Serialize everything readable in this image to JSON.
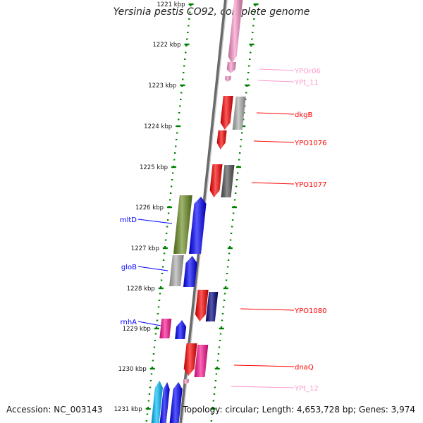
{
  "header": {
    "title": "Yersinia pestis CO92, complete genome"
  },
  "footer": {
    "accession": "Accession: NC_003143",
    "topology": "Topology: circular; Length: 4,653,728 bp; Genes: 3,974"
  },
  "colors": {
    "red": "#ff0000",
    "pink": "#ff99cc",
    "magenta": "#ff1493",
    "blue": "#0000ff",
    "olive": "#6b8e23",
    "cyan": "#00bfff",
    "grey": "#b0b0b0",
    "darkgrey": "#555555",
    "tick": "#008000",
    "backbone": "#808080"
  },
  "ticks": [
    {
      "label": "1221 kbp"
    },
    {
      "label": "1222 kbp"
    },
    {
      "label": "1223 kbp"
    },
    {
      "label": "1224 kbp"
    },
    {
      "label": "1225 kbp"
    },
    {
      "label": "1226 kbp"
    },
    {
      "label": "1227 kbp"
    },
    {
      "label": "1228 kbp"
    },
    {
      "label": "1229 kbp"
    },
    {
      "label": "1230 kbp"
    },
    {
      "label": "1231 kbp"
    }
  ],
  "right_labels": [
    {
      "text": "YPOr06",
      "color": "#ff99cc"
    },
    {
      "text": "YPt_11",
      "color": "#ff99cc"
    },
    {
      "text": "dkgB",
      "color": "#ff0000"
    },
    {
      "text": "YPO1076",
      "color": "#ff0000"
    },
    {
      "text": "YPO1077",
      "color": "#ff0000"
    },
    {
      "text": "YPO1080",
      "color": "#ff0000"
    },
    {
      "text": "dnaQ",
      "color": "#ff0000"
    },
    {
      "text": "YPt_12",
      "color": "#ff99cc"
    }
  ],
  "left_labels": [
    {
      "text": "mltD",
      "color": "#0000ff"
    },
    {
      "text": "gloB",
      "color": "#0000ff"
    },
    {
      "text": "rnhA",
      "color": "#0000ff"
    }
  ]
}
